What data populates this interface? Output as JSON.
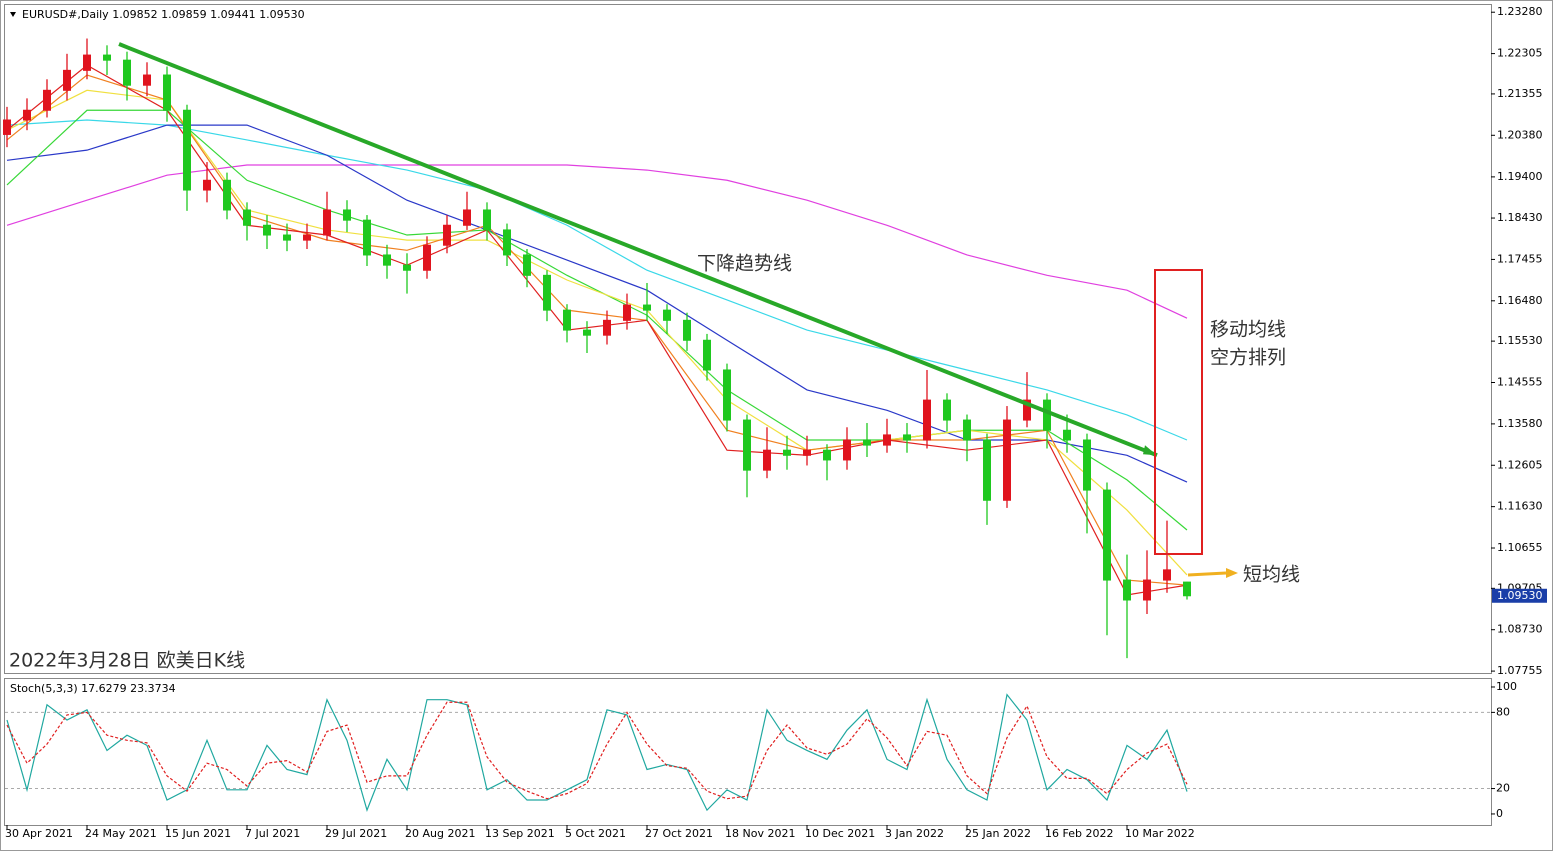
{
  "chart_data": [
    {
      "type": "candlestick",
      "title": "EURUSD#,Daily  1.09852 1.09859 1.09441 1.09530",
      "categories": [
        "30 Apr 2021",
        null,
        null,
        null,
        "24 May 2021",
        null,
        null,
        null,
        "15 Jun 2021",
        null,
        null,
        null,
        "7 Jul 2021",
        null,
        null,
        null,
        "29 Jul 2021",
        null,
        null,
        null,
        "20 Aug 2021",
        null,
        null,
        null,
        "13 Sep 2021",
        null,
        null,
        null,
        "5 Oct 2021",
        null,
        null,
        null,
        "27 Oct 2021",
        null,
        null,
        null,
        "18 Nov 2021",
        null,
        null,
        null,
        "10 Dec 2021",
        null,
        null,
        null,
        "3 Jan 2022",
        null,
        null,
        null,
        "25 Jan 2022",
        null,
        null,
        null,
        "16 Feb 2022",
        null,
        null,
        null,
        "10 Mar 2022",
        null,
        null,
        null
      ],
      "open": [
        1.204,
        1.2074,
        1.2097,
        1.2144,
        1.2191,
        1.2227,
        1.2215,
        1.2156,
        1.218,
        1.2097,
        1.1909,
        1.1932,
        1.1862,
        1.1826,
        1.1803,
        1.1791,
        1.1803,
        1.1862,
        1.1838,
        1.1756,
        1.1732,
        1.172,
        1.1779,
        1.1826,
        1.1862,
        1.1815,
        1.1756,
        1.1708,
        1.1626,
        1.1579,
        1.1567,
        1.1602,
        1.1638,
        1.1626,
        1.1602,
        1.1555,
        1.1485,
        1.1367,
        1.1249,
        1.1296,
        1.1284,
        1.1296,
        1.1273,
        1.132,
        1.1308,
        1.1332,
        1.132,
        1.1414,
        1.1367,
        1.132,
        1.1178,
        1.1367,
        1.1414,
        1.1343,
        1.132,
        1.1202,
        1.099,
        1.0943,
        1.099,
        1.09852
      ],
      "high": [
        1.2105,
        1.2125,
        1.217,
        1.223,
        1.2266,
        1.225,
        1.2235,
        1.221,
        1.22,
        1.211,
        1.1975,
        1.195,
        1.188,
        1.185,
        1.183,
        1.183,
        1.1905,
        1.1885,
        1.185,
        1.178,
        1.176,
        1.18,
        1.185,
        1.1905,
        1.188,
        1.183,
        1.177,
        1.172,
        1.164,
        1.16,
        1.1625,
        1.1665,
        1.169,
        1.164,
        1.162,
        1.157,
        1.15,
        1.138,
        1.135,
        1.133,
        1.133,
        1.131,
        1.135,
        1.136,
        1.137,
        1.136,
        1.1485,
        1.143,
        1.138,
        1.1335,
        1.14,
        1.148,
        1.143,
        1.138,
        1.1335,
        1.122,
        1.105,
        1.106,
        1.113,
        1.09859
      ],
      "low": [
        1.201,
        1.205,
        1.208,
        1.212,
        1.217,
        1.218,
        1.212,
        1.213,
        1.207,
        1.186,
        1.188,
        1.184,
        1.179,
        1.177,
        1.1765,
        1.177,
        1.179,
        1.181,
        1.173,
        1.17,
        1.1665,
        1.17,
        1.176,
        1.1815,
        1.179,
        1.173,
        1.168,
        1.16,
        1.155,
        1.1525,
        1.1545,
        1.158,
        1.16,
        1.157,
        1.153,
        1.146,
        1.134,
        1.1185,
        1.123,
        1.125,
        1.126,
        1.1225,
        1.125,
        1.128,
        1.129,
        1.129,
        1.13,
        1.134,
        1.127,
        1.112,
        1.116,
        1.135,
        1.13,
        1.129,
        1.11,
        1.086,
        1.0806,
        1.091,
        1.096,
        1.09441
      ],
      "close": [
        1.2074,
        1.2097,
        1.2144,
        1.2191,
        1.2227,
        1.2215,
        1.2156,
        1.218,
        1.2097,
        1.1909,
        1.1932,
        1.1862,
        1.1826,
        1.1803,
        1.1791,
        1.1803,
        1.1862,
        1.1838,
        1.1756,
        1.1732,
        1.172,
        1.1779,
        1.1826,
        1.1862,
        1.1815,
        1.1756,
        1.1708,
        1.1626,
        1.1579,
        1.1567,
        1.1602,
        1.1638,
        1.1626,
        1.1602,
        1.1555,
        1.1485,
        1.1367,
        1.1249,
        1.1296,
        1.1284,
        1.1296,
        1.1273,
        1.132,
        1.1308,
        1.1332,
        1.132,
        1.1414,
        1.1367,
        1.132,
        1.1178,
        1.1367,
        1.1414,
        1.1343,
        1.132,
        1.1202,
        1.099,
        1.0943,
        1.099,
        1.1014,
        1.0953
      ],
      "up_color": "#e0141e",
      "down_color": "#1fc81f",
      "ylim": [
        1.0771,
        1.2345
      ],
      "yticks": [
        {
          "value": 1.2328,
          "label": "1.23280"
        },
        {
          "value": 1.22305,
          "label": "1.22305"
        },
        {
          "value": 1.21355,
          "label": "1.21355"
        },
        {
          "value": 1.2038,
          "label": "1.20380"
        },
        {
          "value": 1.194,
          "label": "1.19400"
        },
        {
          "value": 1.1843,
          "label": "1.18430"
        },
        {
          "value": 1.17455,
          "label": "1.17455"
        },
        {
          "value": 1.1648,
          "label": "1.16480"
        },
        {
          "value": 1.1553,
          "label": "1.15530"
        },
        {
          "value": 1.14555,
          "label": "1.14555"
        },
        {
          "value": 1.1358,
          "label": "1.13580"
        },
        {
          "value": 1.12605,
          "label": "1.12605"
        },
        {
          "value": 1.1163,
          "label": "1.11630"
        },
        {
          "value": 1.10655,
          "label": "1.10655"
        },
        {
          "value": 1.09705,
          "label": "1.09705"
        },
        {
          "value": 1.0873,
          "label": "1.08730"
        },
        {
          "value": 1.07755,
          "label": "1.07755"
        }
      ],
      "current_price": {
        "value": 1.0953,
        "label": "1.09530"
      },
      "moving_averages": {
        "x": [
          0,
          4,
          8,
          12,
          16,
          20,
          24,
          28,
          32,
          36,
          40,
          44,
          48,
          52,
          56,
          59
        ],
        "series": [
          {
            "color": "#e040e0",
            "values": [
              1.1826,
              1.1885,
              1.1944,
              1.1968,
              1.1968,
              1.1968,
              1.1968,
              1.1968,
              1.1956,
              1.1932,
              1.1885,
              1.1826,
              1.1756,
              1.1708,
              1.1673,
              1.1607
            ]
          },
          {
            "color": "#3ad8e8",
            "values": [
              1.2062,
              1.2074,
              1.2062,
              1.2027,
              1.1991,
              1.1956,
              1.1909,
              1.1826,
              1.172,
              1.165,
              1.1579,
              1.1532,
              1.1485,
              1.1438,
              1.1379,
              1.132
            ]
          },
          {
            "color": "#2a38c8",
            "values": [
              1.1979,
              1.2003,
              1.2062,
              1.2062,
              1.1991,
              1.1885,
              1.1815,
              1.1744,
              1.1673,
              1.1555,
              1.1438,
              1.139,
              1.132,
              1.132,
              1.1284,
              1.1221
            ]
          },
          {
            "color": "#38d838",
            "values": [
              1.1921,
              1.2097,
              1.2097,
              1.1932,
              1.1862,
              1.1803,
              1.1815,
              1.1708,
              1.1614,
              1.1438,
              1.132,
              1.132,
              1.1343,
              1.1343,
              1.1226,
              1.1108
            ]
          },
          {
            "color": "#f0e040",
            "values": [
              1.205,
              1.2144,
              1.2121,
              1.1862,
              1.1815,
              1.1791,
              1.1791,
              1.1697,
              1.1626,
              1.1414,
              1.1296,
              1.132,
              1.1343,
              1.132,
              1.1155,
              1.1002
            ]
          },
          {
            "color": "#f08020",
            "values": [
              1.2027,
              1.218,
              1.2121,
              1.185,
              1.1791,
              1.1767,
              1.1826,
              1.1626,
              1.1602,
              1.1343,
              1.1296,
              1.132,
              1.132,
              1.1343,
              1.099,
              1.0978
            ]
          },
          {
            "color": "#e02020",
            "values": [
              1.205,
              1.2203,
              1.2097,
              1.1826,
              1.1803,
              1.1732,
              1.1815,
              1.1579,
              1.1602,
              1.1296,
              1.1284,
              1.132,
              1.1296,
              1.132,
              1.0955,
              1.0978
            ]
          }
        ]
      },
      "trendline": {
        "color": "#28a828",
        "x": [
          5.6,
          57.5
        ],
        "values": [
          1.2253,
          1.1284
        ]
      },
      "annotations": [
        "下降趋势线",
        "移动均线",
        "空方排列",
        "短均线",
        "2022年3月28日 欧美日K线"
      ],
      "grid": false
    },
    {
      "type": "line",
      "title": "Stoch(5,3,3) 17.6279 23.3734",
      "series": [
        {
          "color": "#20a8a0",
          "style": "solid",
          "values": [
            74,
            19,
            86,
            74,
            82,
            50,
            62,
            54,
            11,
            19,
            58,
            19,
            19,
            54,
            35,
            31,
            90,
            58,
            3,
            43,
            19,
            90,
            90,
            86,
            19,
            27,
            11,
            11,
            19,
            27,
            82,
            78,
            35,
            39,
            35,
            3,
            19,
            11,
            82,
            58,
            50,
            43,
            66,
            82,
            43,
            35,
            90,
            43,
            19,
            11,
            94,
            74,
            19,
            35,
            27,
            11,
            54,
            43,
            66,
            17.6279
          ]
        },
        {
          "color": "#e02020",
          "style": "dashed",
          "values": [
            70,
            40,
            55,
            78,
            80,
            62,
            58,
            56,
            30,
            18,
            40,
            35,
            22,
            40,
            42,
            33,
            65,
            70,
            25,
            30,
            30,
            62,
            88,
            88,
            45,
            25,
            18,
            12,
            16,
            24,
            55,
            80,
            55,
            38,
            36,
            18,
            12,
            14,
            50,
            70,
            52,
            47,
            55,
            75,
            60,
            38,
            65,
            62,
            30,
            16,
            60,
            85,
            45,
            28,
            28,
            16,
            35,
            48,
            55,
            23.3734
          ]
        }
      ],
      "ylim": [
        -8.7,
        105.5
      ],
      "yticks": [
        0,
        20,
        80,
        100
      ],
      "levels": [
        20,
        80
      ]
    }
  ]
}
